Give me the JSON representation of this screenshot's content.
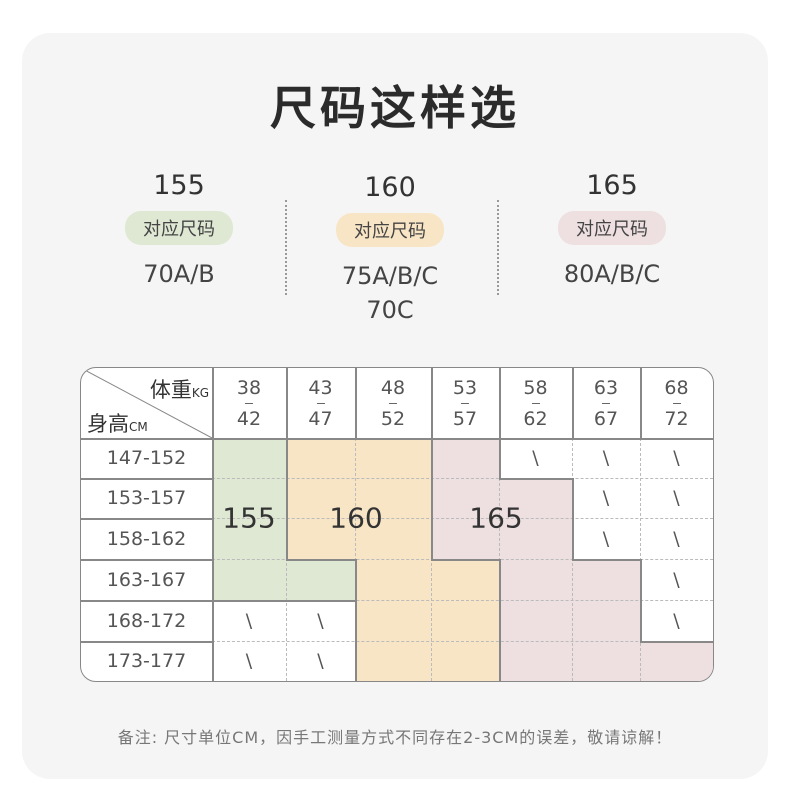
{
  "title": "尺码这样选",
  "sizes": [
    {
      "height": "155",
      "label": "对应尺码",
      "bra": [
        "70A/B"
      ],
      "color": "#dfe8d3"
    },
    {
      "height": "160",
      "label": "对应尺码",
      "bra": [
        "75A/B/C",
        "70C"
      ],
      "color": "#f8e5c5"
    },
    {
      "height": "165",
      "label": "对应尺码",
      "bra": [
        "80A/B/C"
      ],
      "color": "#eedfe0"
    }
  ],
  "table": {
    "corner_weight": "体重",
    "corner_weight_unit": "KG",
    "corner_height": "身高",
    "corner_height_unit": "CM",
    "weights": [
      [
        "38",
        "42"
      ],
      [
        "43",
        "47"
      ],
      [
        "48",
        "52"
      ],
      [
        "53",
        "57"
      ],
      [
        "58",
        "62"
      ],
      [
        "63",
        "67"
      ],
      [
        "68",
        "72"
      ]
    ],
    "heights": [
      "147-152",
      "153-157",
      "158-162",
      "163-167",
      "168-172",
      "173-177"
    ],
    "grid": [
      [
        "155",
        "160",
        "160",
        "165",
        "\\",
        "\\",
        "\\"
      ],
      [
        "155",
        "160",
        "160",
        "165",
        "165",
        "\\",
        "\\"
      ],
      [
        "155",
        "160",
        "160",
        "165",
        "165",
        "\\",
        "\\"
      ],
      [
        "155",
        "155",
        "160",
        "160",
        "165",
        "165",
        "\\"
      ],
      [
        "\\",
        "\\",
        "160",
        "160",
        "165",
        "165",
        "\\"
      ],
      [
        "\\",
        "\\",
        "160",
        "160",
        "165",
        "165",
        "165"
      ]
    ],
    "region_labels": [
      "155",
      "160",
      "165"
    ]
  },
  "note": "备注: 尺寸单位CM，因手工测量方式不同存在2-3CM的误差，敬请谅解！"
}
